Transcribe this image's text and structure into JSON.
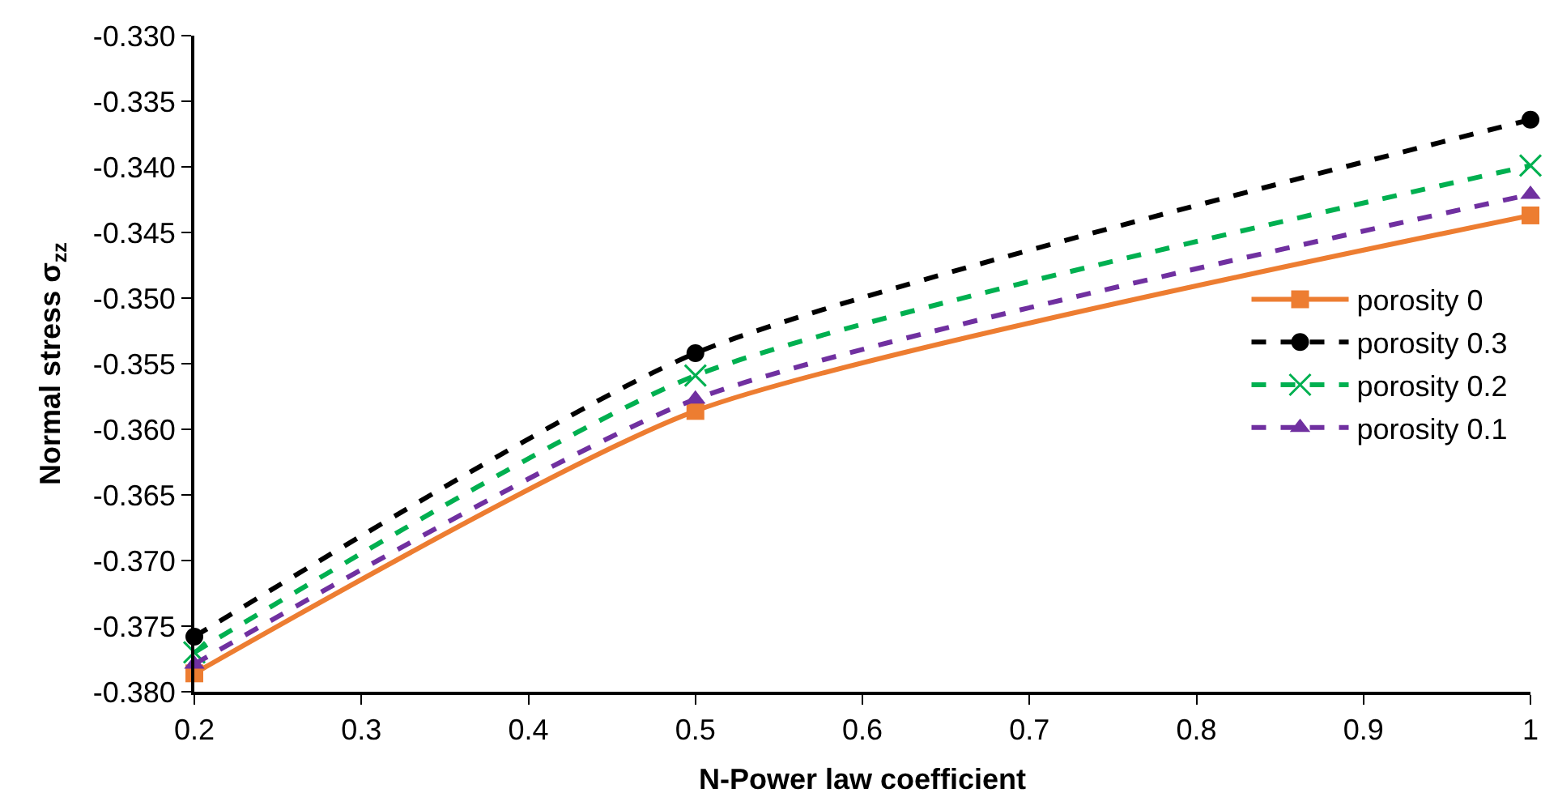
{
  "chart_data": {
    "type": "line",
    "xlabel": "N-Power law coefficient",
    "ylabel": "Normal stress σ$_{zz}$",
    "x": [
      0.2,
      0.5,
      1
    ],
    "series": [
      {
        "name": "porosity 0",
        "color": "#ed7d31",
        "marker": "square",
        "line_style": "solid",
        "values": [
          -0.3786,
          -0.3586,
          -0.3437
        ]
      },
      {
        "name": "porosity 0.3",
        "color": "#000000",
        "marker": "circle",
        "line_style": "dashed",
        "values": [
          -0.3758,
          -0.3542,
          -0.3364
        ]
      },
      {
        "name": "porosity 0.2",
        "color": "#00b050",
        "marker": "cross",
        "line_style": "dashed",
        "values": [
          -0.377,
          -0.3559,
          -0.3399
        ]
      },
      {
        "name": "porosity 0.1",
        "color": "#7030a0",
        "marker": "triangle",
        "line_style": "dashed",
        "values": [
          -0.3779,
          -0.3577,
          -0.3421
        ]
      }
    ],
    "xlim": [
      0.2,
      1
    ],
    "xticks": [
      {
        "value": 0.2,
        "label": "0.2"
      },
      {
        "value": 0.3,
        "label": "0.3"
      },
      {
        "value": 0.4,
        "label": "0.4"
      },
      {
        "value": 0.5,
        "label": "0.5"
      },
      {
        "value": 0.6,
        "label": "0.6"
      },
      {
        "value": 0.7,
        "label": "0.7"
      },
      {
        "value": 0.8,
        "label": "0.8"
      },
      {
        "value": 0.9,
        "label": "0.9"
      },
      {
        "value": 1,
        "label": "1"
      }
    ],
    "ylim": [
      -0.38,
      -0.33
    ],
    "yticks": [
      {
        "value": -0.38,
        "label": "-0.380"
      },
      {
        "value": -0.375,
        "label": "-0.375"
      },
      {
        "value": -0.37,
        "label": "-0.370"
      },
      {
        "value": -0.365,
        "label": "-0.365"
      },
      {
        "value": -0.36,
        "label": "-0.360"
      },
      {
        "value": -0.355,
        "label": "-0.355"
      },
      {
        "value": -0.35,
        "label": "-0.350"
      },
      {
        "value": -0.345,
        "label": "-0.345"
      },
      {
        "value": -0.34,
        "label": "-0.340"
      },
      {
        "value": -0.335,
        "label": "-0.335"
      },
      {
        "value": -0.33,
        "label": "-0.330"
      }
    ],
    "legend": "right"
  }
}
